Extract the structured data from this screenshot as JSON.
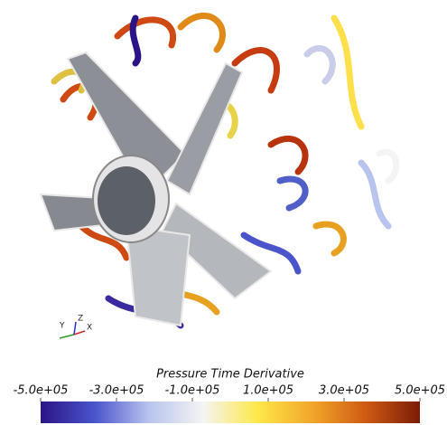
{
  "scene": {
    "axes": {
      "y": "Y",
      "z": "Z",
      "x": "X"
    }
  },
  "colorbar": {
    "title": "Pressure Time Derivative",
    "ticks": [
      {
        "value": -500000,
        "label": "-5.0e+05"
      },
      {
        "value": -300000,
        "label": "-3.0e+05"
      },
      {
        "value": -100000,
        "label": "-1.0e+05"
      },
      {
        "value": 100000,
        "label": "1.0e+05"
      },
      {
        "value": 300000,
        "label": "3.0e+05"
      },
      {
        "value": 500000,
        "label": "5.0e+05"
      }
    ],
    "colors": [
      "#2b1488",
      "#4a55cc",
      "#b9c4ee",
      "#f4f4f4",
      "#ffe84a",
      "#f2a72a",
      "#cf5a14",
      "#7a1c06"
    ]
  }
}
